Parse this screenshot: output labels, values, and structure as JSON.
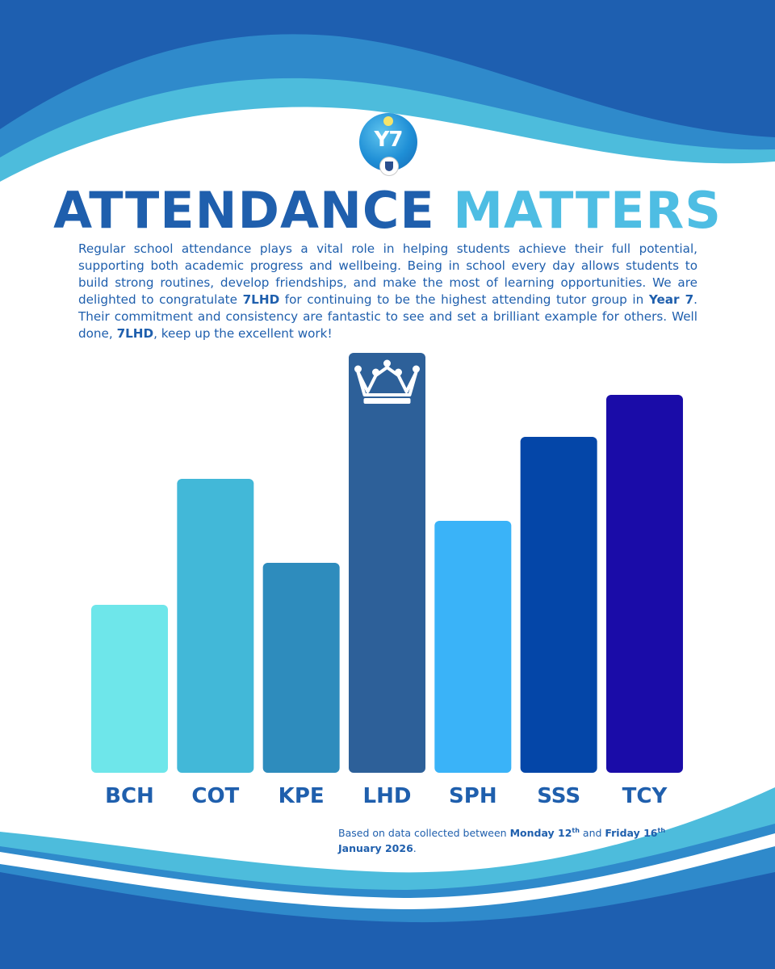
{
  "logo": {
    "text": "Y7"
  },
  "title": {
    "part1": "ATTENDANCE",
    "part2": "MATTERS"
  },
  "intro": {
    "s1": "Regular school attendance plays a vital role in helping students achieve their full potential, supporting both academic progress and wellbeing. Being in school every day allows students to build strong routines, develop friendships, and make the most of learning opportunities. We are delighted to congratulate ",
    "group1": "7LHD",
    "s2": " for continuing to be the highest attending tutor group in ",
    "year": "Year 7",
    "s3": ". Their commitment and consistency are fantastic to see and set a brilliant example for others. Well done, ",
    "group2": "7LHD",
    "s4": ", keep up the excellent work!"
  },
  "chart_data": {
    "type": "bar",
    "categories": [
      "BCH",
      "COT",
      "KPE",
      "LHD",
      "SPH",
      "SSS",
      "TCY"
    ],
    "values": [
      40,
      70,
      50,
      100,
      60,
      80,
      90
    ],
    "colors": [
      "#6ee6ea",
      "#42b8d8",
      "#2e8cbd",
      "#2d6099",
      "#3ab3f8",
      "#0446a8",
      "#1a0ca8"
    ],
    "highlight_index": 3,
    "highlight_icon": "crown-icon",
    "label_color": "#1f5fad",
    "ylim": [
      0,
      100
    ]
  },
  "footnote": {
    "prefix": "Based on data collected between ",
    "start_day": "Monday 12",
    "start_sup": "th",
    "mid": " and ",
    "end_day": "Friday 16",
    "end_sup": "th",
    "end_line": "January 2026",
    "suffix": "."
  },
  "colors": {
    "title_dark": "#1f5fad",
    "title_light": "#4ebde3",
    "wave_dark": "#1e5fb0",
    "wave_mid": "#2f8acb",
    "wave_light": "#4dbcdc"
  }
}
